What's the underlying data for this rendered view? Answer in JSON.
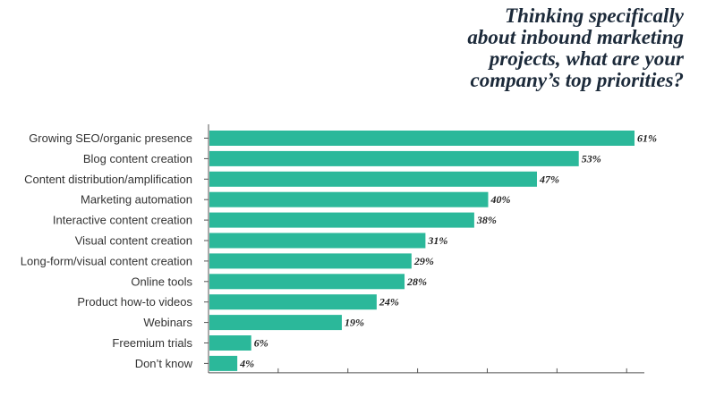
{
  "title_lines": [
    "Thinking specifically",
    "about inbound marketing",
    "projects, what are your",
    "company’s top priorities?"
  ],
  "colors": {
    "bar": "#2bb89a",
    "axis": "#555555",
    "title": "#1c2a3a"
  },
  "chart_data": {
    "type": "bar",
    "orientation": "horizontal",
    "title": "Thinking specifically about inbound marketing projects, what are your company’s top priorities?",
    "categories": [
      "Growing SEO/organic presence",
      "Blog content creation",
      "Content distribution/amplification",
      "Marketing automation",
      "Interactive content creation",
      "Visual content creation",
      "Long-form/visual content creation",
      "Online tools",
      "Product how-to videos",
      "Webinars",
      "Freemium trials",
      "Don’t know"
    ],
    "values": [
      61,
      53,
      47,
      40,
      38,
      31,
      29,
      28,
      24,
      19,
      6,
      4
    ],
    "value_labels": [
      "61%",
      "53%",
      "47%",
      "40%",
      "38%",
      "31%",
      "29%",
      "28%",
      "24%",
      "19%",
      "6%",
      "4%"
    ],
    "xlim": [
      0,
      62
    ],
    "grid": false,
    "legend": "none"
  }
}
